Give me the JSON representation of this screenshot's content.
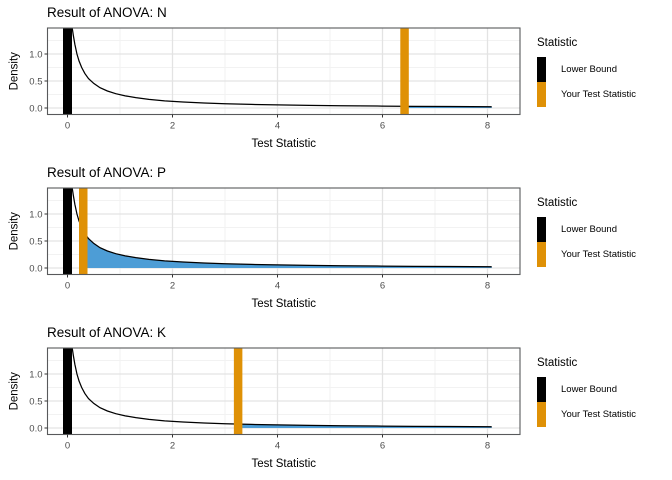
{
  "chart_data": {
    "type": "line",
    "description": "Three stacked density plots of the same null distribution for ANOVA test statistics, each with a black lower-bound vertical bar at 0, an orange vertical bar at the observed test statistic, and a blue shaded p-value region under the curve to the right of the test statistic.",
    "xlabel": "Test Statistic",
    "ylabel": "Density",
    "x_ticks": [
      0,
      2,
      4,
      6,
      8
    ],
    "x_tick_labels": [
      "0",
      "2",
      "4",
      "6",
      "8"
    ],
    "x_minor_ticks": [
      1,
      3,
      5,
      7
    ],
    "y_ticks": [
      0,
      0.5,
      1.0
    ],
    "y_tick_labels": [
      "0.0",
      "0.5",
      "1.0"
    ],
    "y_minor_ticks": [
      0.25,
      0.75,
      1.25
    ],
    "xlim": [
      -0.38,
      8.62
    ],
    "ylim": [
      -0.12,
      1.48
    ],
    "grid": true,
    "curve": {
      "name": "null-distribution-density",
      "x": [
        0.03,
        0.05,
        0.07,
        0.09,
        0.11,
        0.14,
        0.18,
        0.22,
        0.27,
        0.33,
        0.4,
        0.5,
        0.62,
        0.76,
        0.92,
        1.1,
        1.3,
        1.55,
        1.85,
        2.2,
        2.6,
        3.0,
        3.5,
        4.0,
        4.6,
        5.2,
        5.9,
        6.6,
        7.3,
        8.08
      ],
      "y": [
        2.2,
        1.9,
        1.65,
        1.48,
        1.35,
        1.18,
        1.0,
        0.87,
        0.75,
        0.64,
        0.545,
        0.455,
        0.375,
        0.315,
        0.265,
        0.225,
        0.192,
        0.16,
        0.132,
        0.11,
        0.092,
        0.079,
        0.066,
        0.057,
        0.048,
        0.042,
        0.036,
        0.031,
        0.027,
        0.024
      ]
    },
    "panels": [
      {
        "title": "Result of ANOVA: N",
        "lower_bound": 0,
        "test_statistic": 6.42,
        "shaded_region": [
          6.42,
          8.08
        ]
      },
      {
        "title": "Result of ANOVA: P",
        "lower_bound": 0,
        "test_statistic": 0.3,
        "shaded_region": [
          0.3,
          8.08
        ]
      },
      {
        "title": "Result of ANOVA: K",
        "lower_bound": 0,
        "test_statistic": 3.25,
        "shaded_region": [
          3.25,
          8.08
        ]
      }
    ],
    "legend": {
      "title": "Statistic",
      "entries": [
        "Lower Bound",
        "Your Test Statistic"
      ],
      "colors": [
        "#000000",
        "#DF9106"
      ],
      "position": "right"
    },
    "colors": {
      "curve": "#000000",
      "shade": "#4D9DD6",
      "lower_bound_bar": "#000000",
      "test_statistic_bar": "#DF9106",
      "grid_major": "#E3E3E3",
      "grid_minor": "#F2F2F2",
      "panel_border": "#58595B",
      "tick_mark": "#333333",
      "tick_text": "#4D4D4D",
      "background": "#FFFFFF"
    }
  }
}
